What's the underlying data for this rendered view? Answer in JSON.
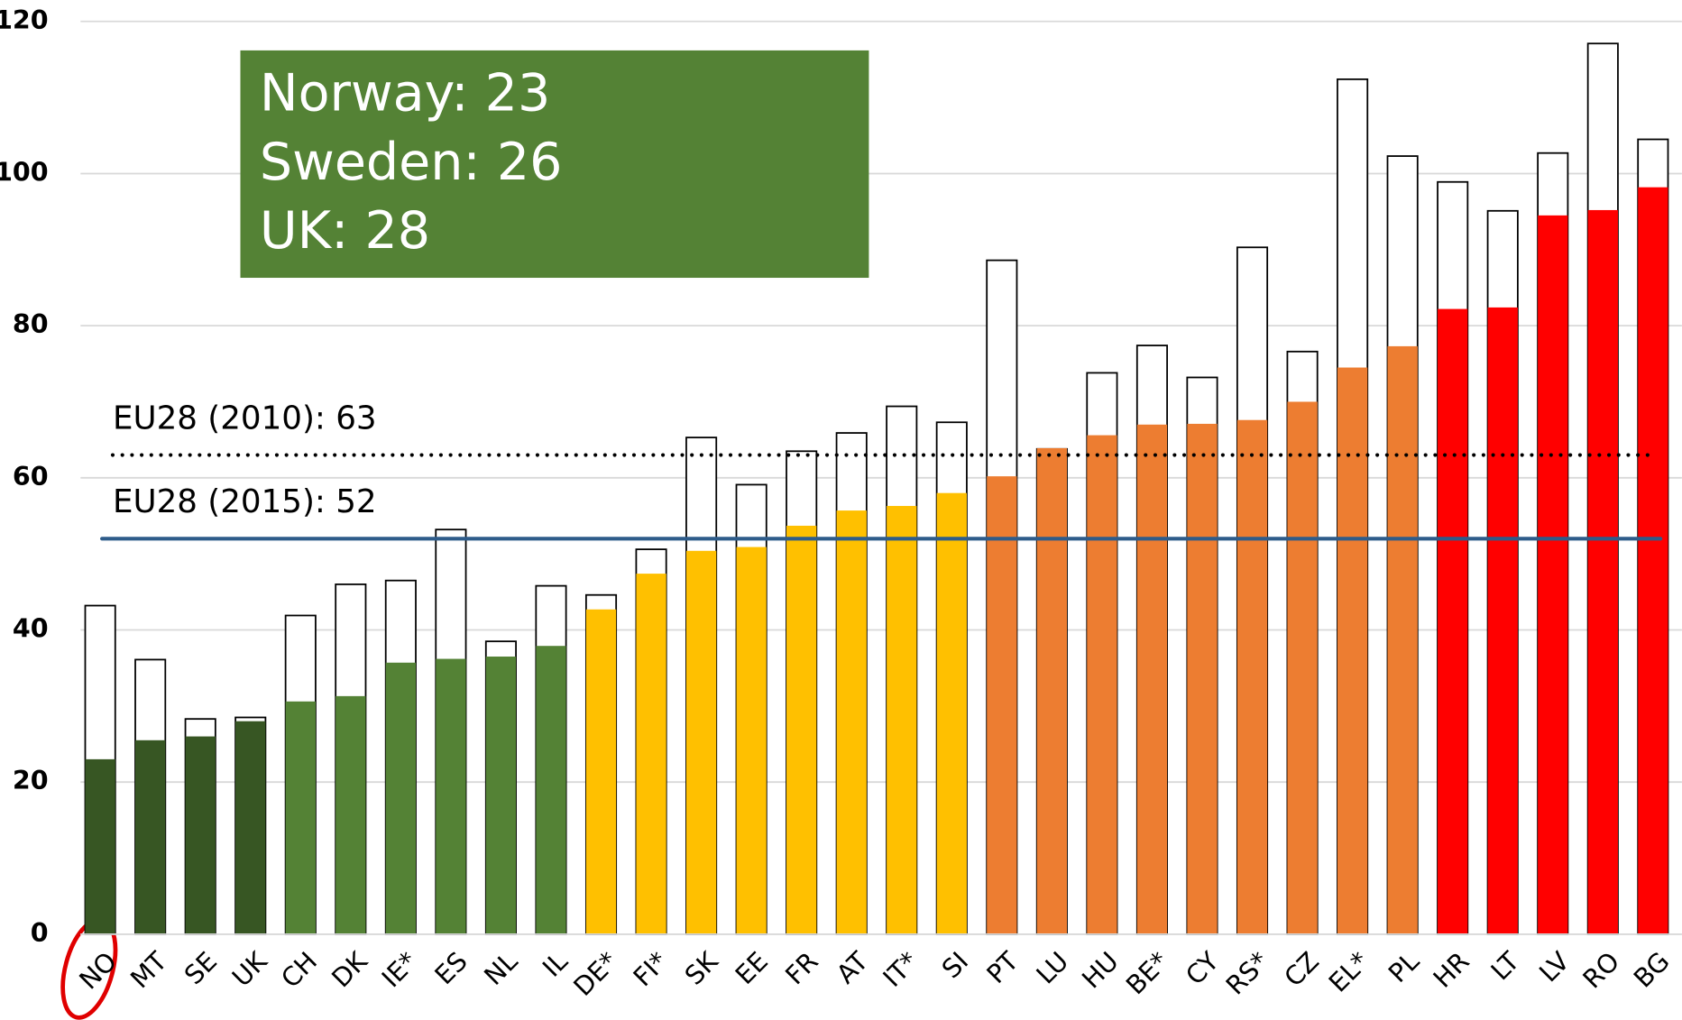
{
  "chart_data": {
    "type": "bar",
    "categories": [
      "NO",
      "MT",
      "SE",
      "UK",
      "CH",
      "DK",
      "IE*",
      "ES",
      "NL",
      "IL",
      "DE*",
      "FI*",
      "SK",
      "EE",
      "FR",
      "AT",
      "IT*",
      "SI",
      "PT",
      "LU",
      "HU",
      "BE*",
      "CY",
      "RS*",
      "CZ",
      "EL*",
      "PL",
      "HR",
      "LT",
      "LV",
      "RO",
      "BG"
    ],
    "series": [
      {
        "color": "#ffffff",
        "stroke": "#000000",
        "values": [
          43.2,
          36.1,
          28.3,
          28.5,
          41.9,
          46,
          46.5,
          53.2,
          38.5,
          45.8,
          44.6,
          50.6,
          65.3,
          59.1,
          63.5,
          65.9,
          69.4,
          67.3,
          88.6,
          63.8,
          73.8,
          77.4,
          73.2,
          90.3,
          76.6,
          112.4,
          102.3,
          98.9,
          95.1,
          102.7,
          117.1,
          104.5
        ]
      },
      {
        "colors": [
          "#375623",
          "#375623",
          "#375623",
          "#375623",
          "#548235",
          "#548235",
          "#548235",
          "#548235",
          "#548235",
          "#548235",
          "#ffc000",
          "#ffc000",
          "#ffc000",
          "#ffc000",
          "#ffc000",
          "#ffc000",
          "#ffc000",
          "#ffc000",
          "#ed7d31",
          "#ed7d31",
          "#ed7d31",
          "#ed7d31",
          "#ed7d31",
          "#ed7d31",
          "#ed7d31",
          "#ed7d31",
          "#ed7d31",
          "#ff0000",
          "#ff0000",
          "#ff0000",
          "#ff0000",
          "#ff0000"
        ],
        "values": [
          23,
          25.5,
          26,
          28,
          30.6,
          31.3,
          35.7,
          36.2,
          36.5,
          37.9,
          42.7,
          47.4,
          50.4,
          50.9,
          53.7,
          55.7,
          56.3,
          58,
          60.2,
          63.9,
          65.6,
          67,
          67.1,
          67.6,
          70,
          74.5,
          77.3,
          82.2,
          82.4,
          94.5,
          95.2,
          98.2
        ]
      }
    ],
    "reference_lines": [
      {
        "label": "EU28 (2010): 63",
        "value": 63,
        "style": "dotted",
        "color": "#000000"
      },
      {
        "label": "EU28 (2015): 52",
        "value": 52,
        "style": "solid",
        "color": "#2e5c8a"
      }
    ],
    "annotation": {
      "lines": [
        "Norway: 23",
        "Sweden: 26",
        "UK: 28"
      ],
      "color": "#548235"
    },
    "ylim": [
      0,
      120
    ],
    "yticks": [
      0,
      20,
      40,
      60,
      80,
      100,
      120
    ],
    "grid": true
  }
}
